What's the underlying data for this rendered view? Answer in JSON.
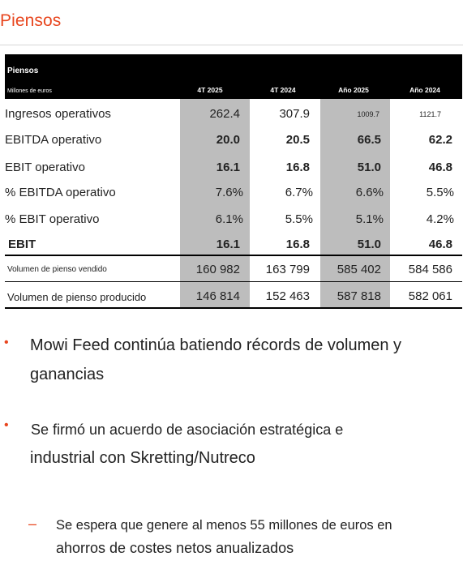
{
  "title": "Piensos",
  "table": {
    "header_title": "Piensos",
    "header_sub": "Millones de euros",
    "columns": [
      "4T 2025",
      "4T 2024",
      "Año 2025",
      "Año 2024"
    ],
    "rows": [
      {
        "label": "Ingresos operativos",
        "values": [
          "262.4",
          "307.9",
          "1009.7",
          "1121.7"
        ]
      },
      {
        "label": "EBITDA operativo",
        "values": [
          "20.0",
          "20.5",
          "66.5",
          "62.2"
        ]
      },
      {
        "label": "EBIT operativo",
        "values": [
          "16.1",
          "16.8",
          "51.0",
          "46.8"
        ]
      },
      {
        "label": "% EBITDA operativo",
        "values": [
          "7.6%",
          "6.7%",
          "6.6%",
          "5.5%"
        ]
      },
      {
        "label": "% EBIT operativo",
        "values": [
          "6.1%",
          "5.5%",
          "5.1%",
          "4.2%"
        ]
      },
      {
        "label": "EBIT",
        "values": [
          "16.1",
          "16.8",
          "51.0",
          "46.8"
        ]
      },
      {
        "label": "Volumen de pienso vendido",
        "values": [
          "160 982",
          "163 799",
          "585 402",
          "584 586"
        ]
      },
      {
        "label": "Volumen de pienso producido",
        "values": [
          "146 814",
          "152 463",
          "587 818",
          "582 061"
        ]
      }
    ]
  },
  "bullets": [
    {
      "line1": "Mowi Feed continúa batiendo récords de volumen y",
      "line2": "ganancias"
    },
    {
      "line1": "Se firmó un acuerdo de asociación estratégica e",
      "line2": "industrial con Skretting/Nutreco"
    }
  ],
  "sub_bullet": {
    "line1": "Se espera que genere al menos 55 millones de euros en",
    "line2": "ahorros de costes netos anualizados"
  },
  "colors": {
    "accent": "#e8461e",
    "shade": "#bdbdbd",
    "header": "#000000"
  }
}
